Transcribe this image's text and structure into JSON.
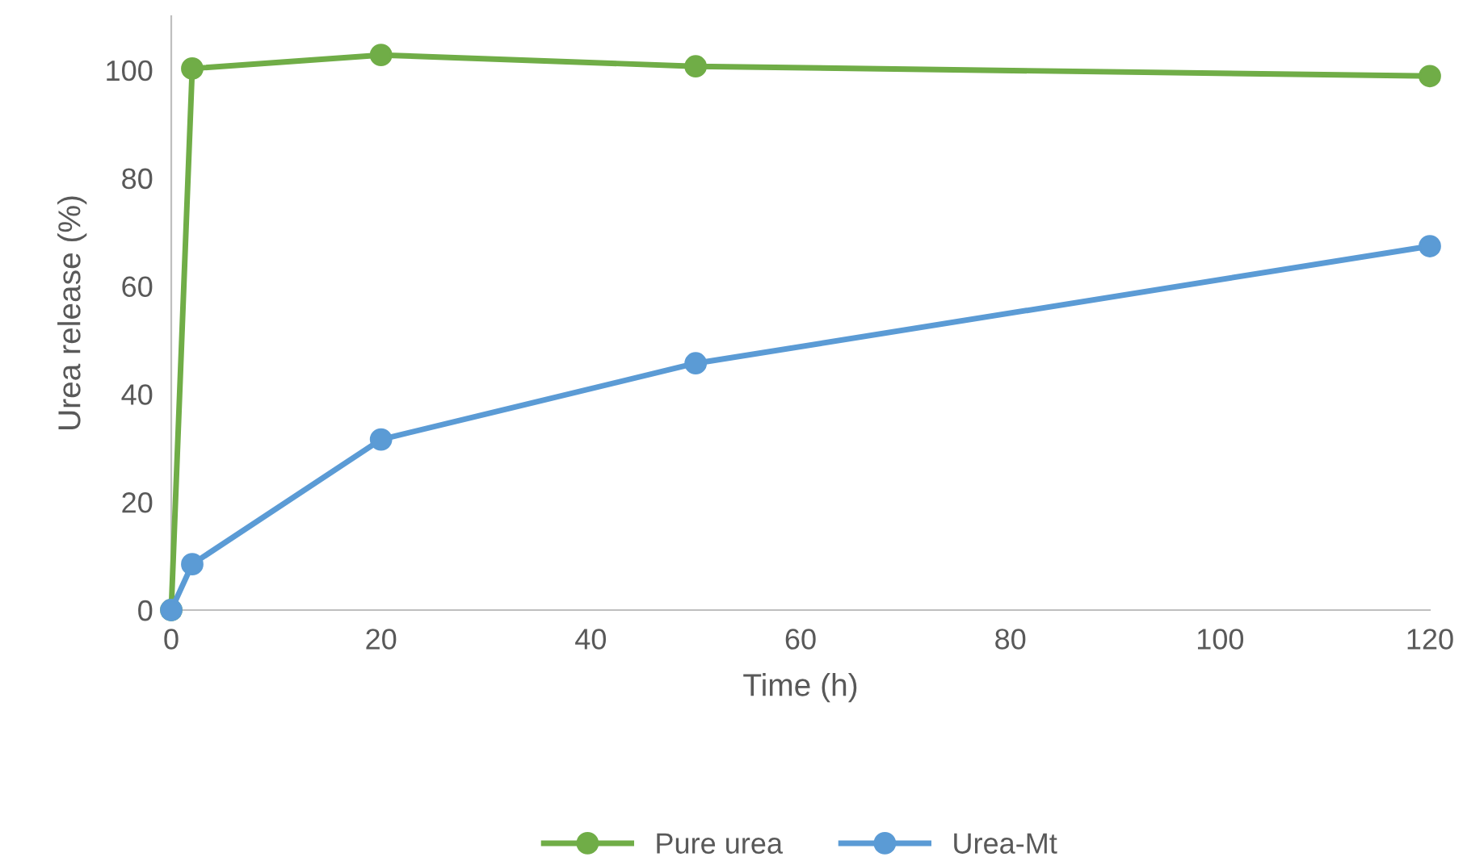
{
  "chart_data": {
    "type": "line",
    "xlabel": "Time (h)",
    "ylabel": "Urea release (%)",
    "x": [
      0,
      2,
      20,
      50,
      120
    ],
    "series": [
      {
        "name": "Pure urea",
        "color": "#70ad47",
        "values": [
          0,
          100.3,
          102.8,
          100.7,
          98.9
        ]
      },
      {
        "name": "Urea-Mt",
        "color": "#5b9bd5",
        "values": [
          0,
          8.5,
          31.6,
          45.7,
          67.4
        ]
      }
    ],
    "xlim": [
      0,
      120
    ],
    "xticks": [
      0,
      20,
      40,
      60,
      80,
      100,
      120
    ],
    "ylim": [
      0,
      110
    ],
    "yticks": [
      0,
      20,
      40,
      60,
      80,
      100
    ],
    "grid": false,
    "legend": "bottom",
    "marker": "circle",
    "line_style": "solid"
  }
}
